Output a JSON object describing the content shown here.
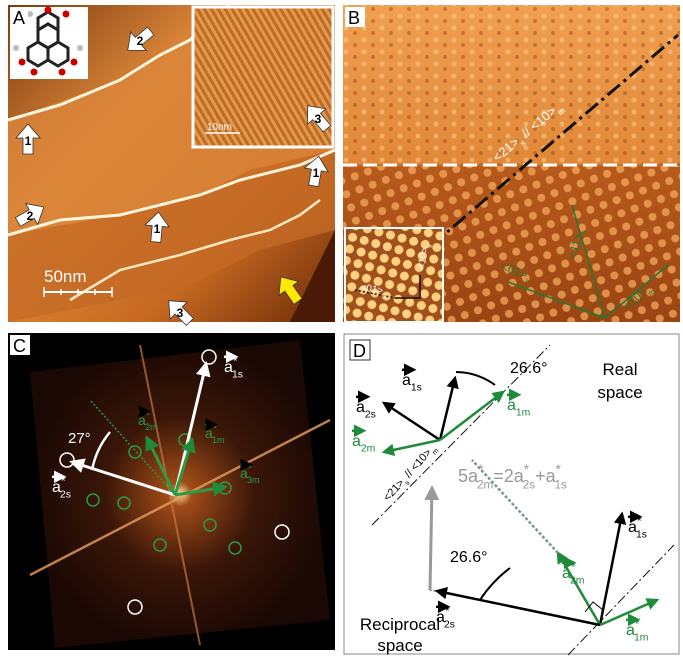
{
  "panel_a": {
    "label": "A",
    "arrows": [
      "2",
      "1",
      "3",
      "1",
      "2",
      "1",
      "3"
    ],
    "scale_bar": "50nm",
    "inset_scale_bar": "10nm"
  },
  "panel_b": {
    "label": "B",
    "direction": [
      {
        "text": "<21>",
        "sub": "s"
      },
      {
        "text": " // "
      },
      {
        "text": "<10>",
        "sub": "m"
      }
    ],
    "inset_directions": [
      [
        {
          "text": "<01>",
          "sub": "s"
        }
      ],
      [
        {
          "text": "<10>",
          "sub": "s"
        }
      ]
    ],
    "directions": [
      [
        {
          "text": "<11>",
          "sub": "s"
        }
      ],
      [
        {
          "text": "<01>",
          "sub": "s"
        }
      ],
      [
        {
          "text": "<10>",
          "sub": "m"
        }
      ]
    ]
  },
  "panel_c": {
    "label": "C",
    "angle": "27°",
    "vectors": [
      [
        {
          "text": "a",
          "sup": "*",
          "sub": "1s"
        }
      ],
      [
        {
          "text": "a",
          "sup": "*",
          "sub": "2s"
        }
      ],
      [
        {
          "text": "a",
          "sup": "*",
          "sub": "2m"
        }
      ],
      [
        {
          "text": "a",
          "sup": "*",
          "sub": "1m"
        }
      ],
      [
        {
          "text": "a",
          "sup": "*",
          "sub": "3m"
        }
      ]
    ]
  },
  "panel_d": {
    "label": "D",
    "real_space": [
      "Real",
      "space"
    ],
    "reciprocal_space": [
      "Reciprocal",
      "space"
    ],
    "angles": [
      "26.6°",
      "26.6°"
    ],
    "direction": [
      {
        "text": "<21>",
        "sub": "s"
      },
      {
        "text": " // "
      },
      {
        "text": "<10>",
        "sub": "m"
      }
    ],
    "real_vectors": [
      [
        {
          "text": "a",
          "sub": "1s"
        }
      ],
      [
        {
          "text": "a",
          "sub": "2s"
        }
      ],
      [
        {
          "text": "a",
          "sub": "1m"
        }
      ],
      [
        {
          "text": "a",
          "sub": "2m"
        }
      ]
    ],
    "reciprocal_vectors": [
      [
        {
          "text": "a",
          "sup": "*",
          "sub": "1s"
        }
      ],
      [
        {
          "text": "a",
          "sup": "*",
          "sub": "2m"
        }
      ],
      [
        {
          "text": "a",
          "sup": "*",
          "sub": "2s"
        }
      ],
      [
        {
          "text": "a",
          "sup": "*",
          "sub": "1m"
        }
      ]
    ],
    "equation": [
      {
        "text": "5a",
        "sup": "*",
        "sub": "2m"
      },
      {
        "text": "=2a",
        "sup": "*",
        "sub": "2s"
      },
      {
        "text": "+a",
        "sup": "*",
        "sub": "1s"
      }
    ]
  }
}
